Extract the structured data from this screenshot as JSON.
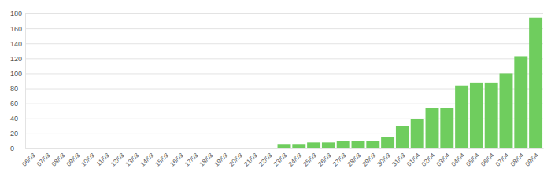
{
  "chart_data": {
    "type": "bar",
    "categories": [
      "06/03",
      "07/03",
      "08/03",
      "09/03",
      "10/03",
      "11/03",
      "12/03",
      "13/03",
      "14/03",
      "15/03",
      "16/03",
      "17/03",
      "18/03",
      "19/03",
      "20/03",
      "21/03",
      "22/03",
      "23/03",
      "24/03",
      "25/03",
      "26/03",
      "27/03",
      "28/03",
      "29/03",
      "30/03",
      "31/03",
      "01/04",
      "02/04",
      "03/04",
      "04/04",
      "05/04",
      "06/04",
      "07/04",
      "08/04",
      "09/04"
    ],
    "values": [
      0,
      0,
      0,
      0,
      0,
      0,
      0,
      0,
      0,
      0,
      0,
      0,
      0,
      0,
      0,
      0,
      0,
      6,
      6,
      8,
      8,
      10,
      10,
      10,
      15,
      30,
      39,
      54,
      54,
      84,
      87,
      87,
      100,
      123,
      174
    ],
    "color": "#6fcd5e",
    "ylim": [
      0,
      180
    ],
    "yticks": [
      0,
      20,
      40,
      60,
      80,
      100,
      120,
      140,
      160,
      180
    ],
    "grid": true
  }
}
